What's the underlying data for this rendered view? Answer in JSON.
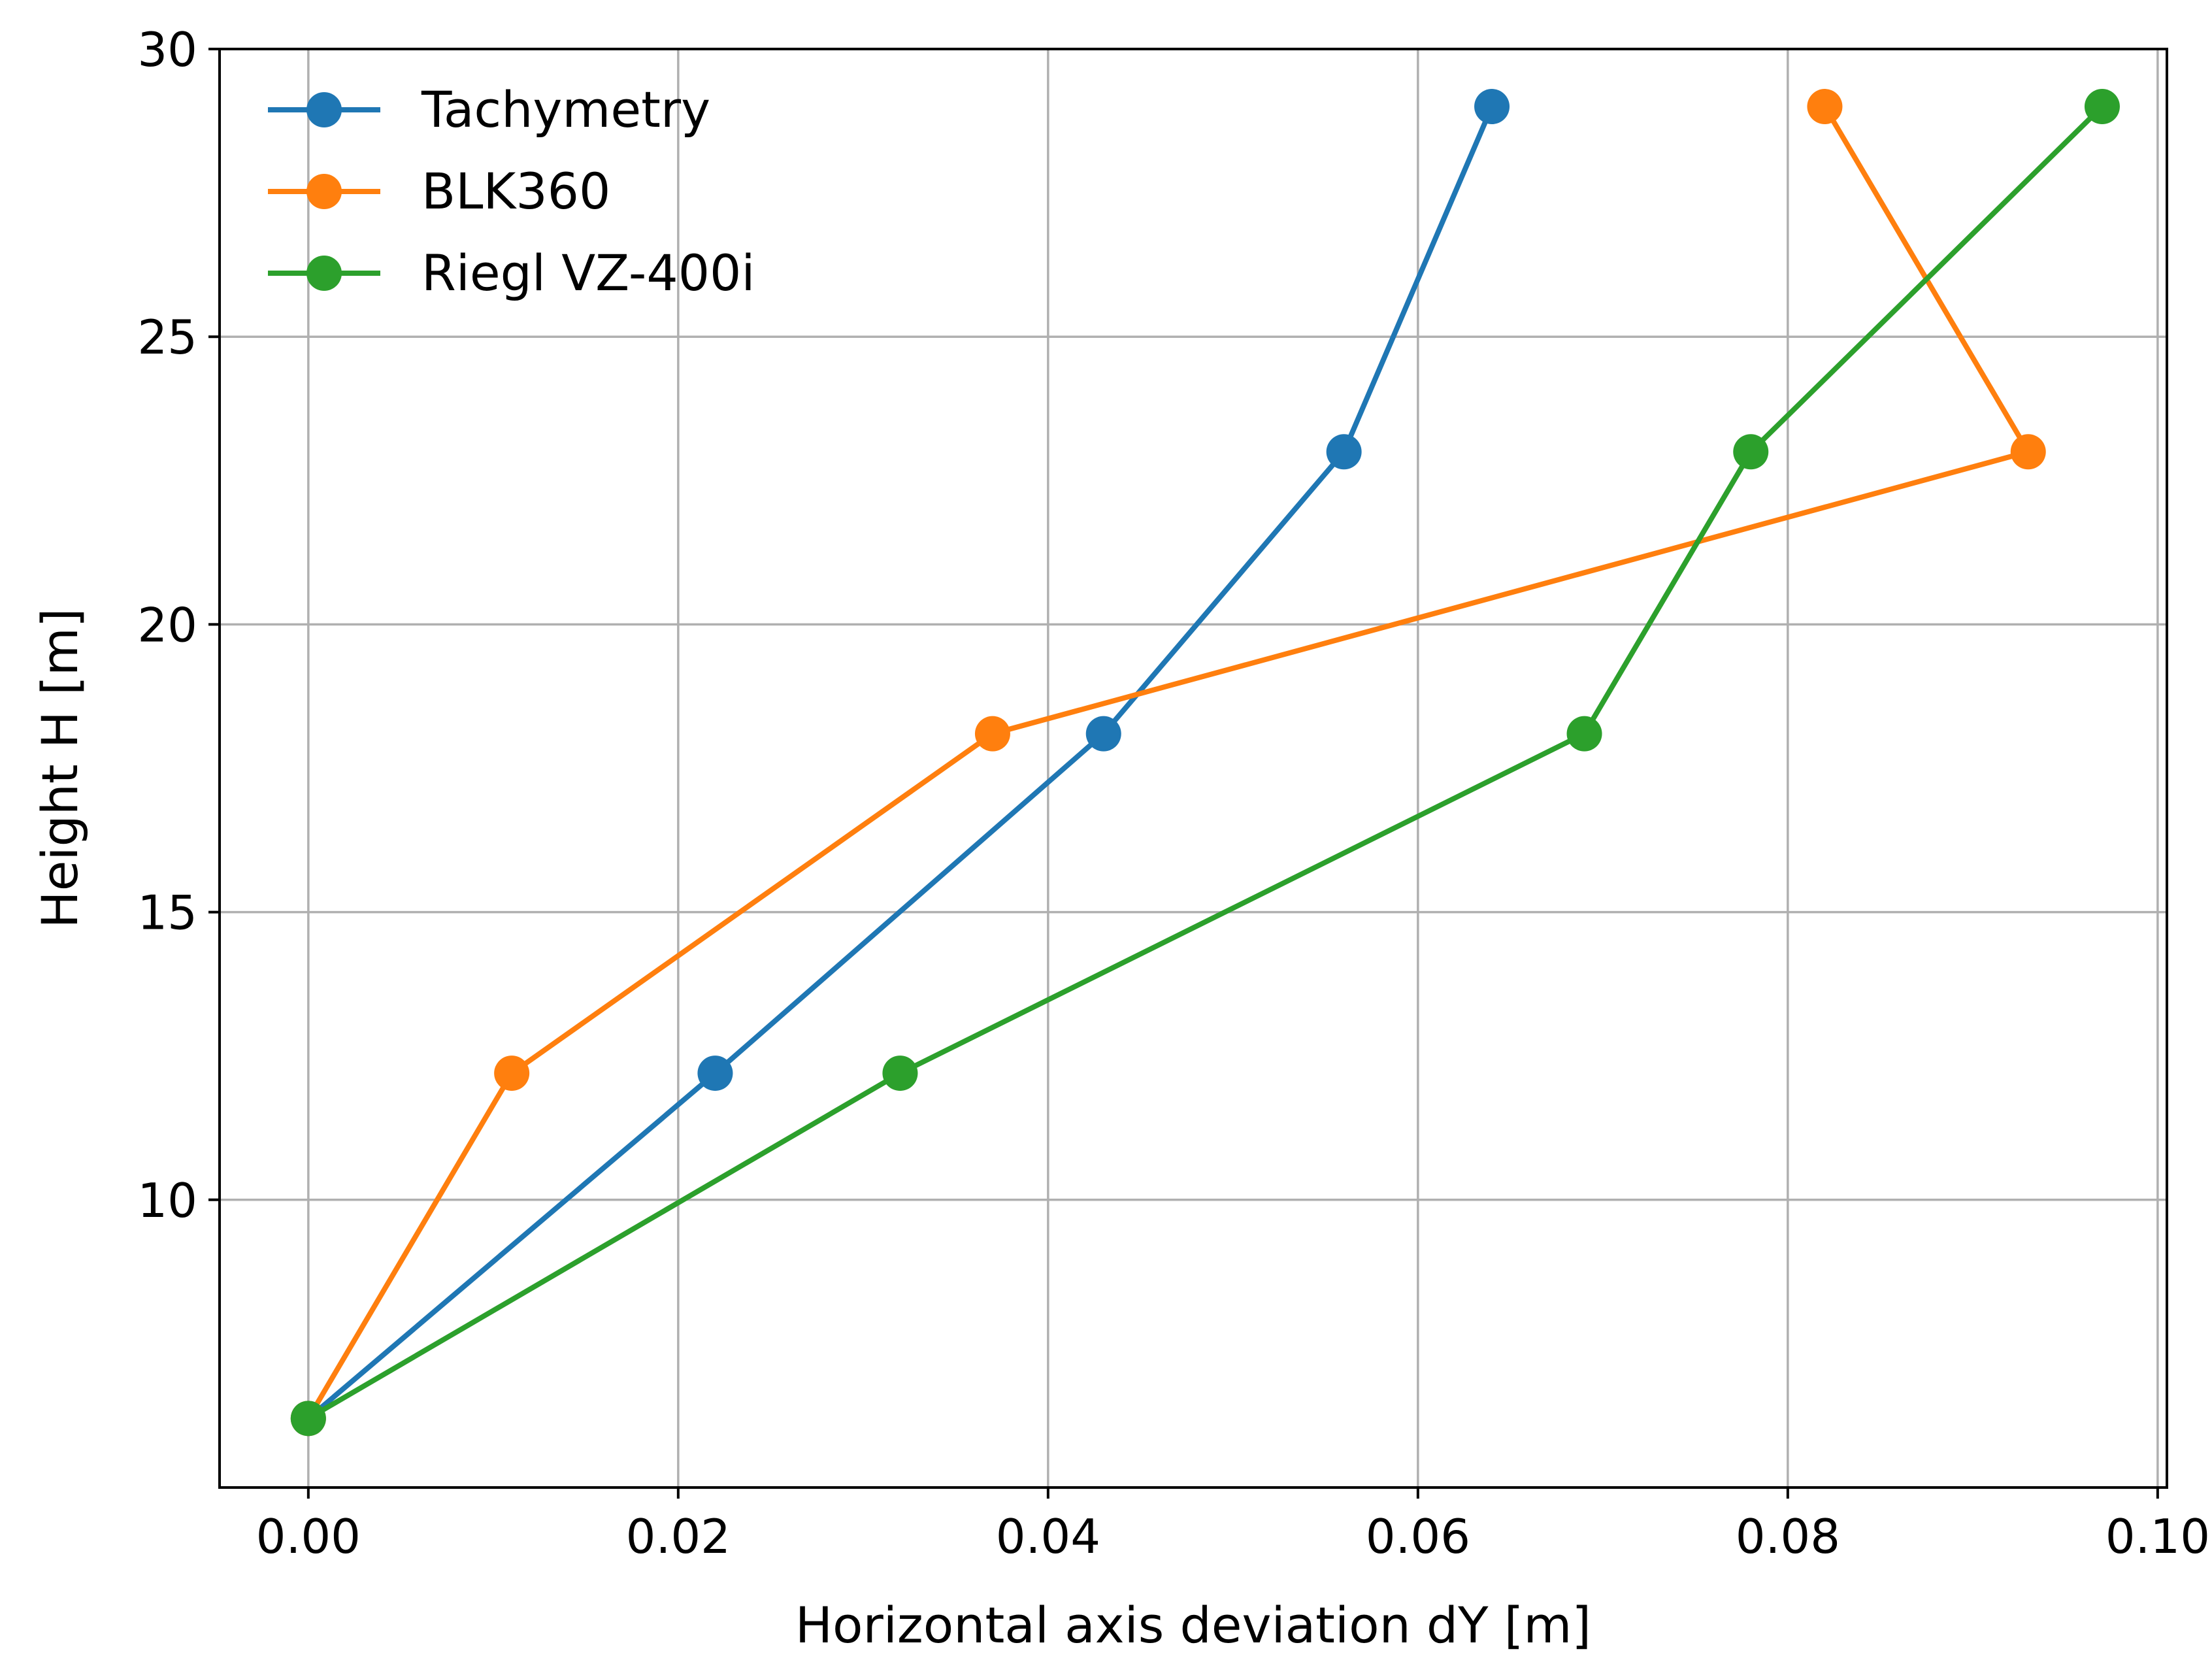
{
  "chart_data": {
    "type": "line",
    "title": "",
    "xlabel": "Horizontal axis deviation dY [m]",
    "ylabel": "Height H [m]",
    "xlim": [
      -0.0048,
      0.1005
    ],
    "ylim": [
      5.0,
      30.0
    ],
    "xticks": [
      {
        "value": 0.0,
        "label": "0.00"
      },
      {
        "value": 0.02,
        "label": "0.02"
      },
      {
        "value": 0.04,
        "label": "0.04"
      },
      {
        "value": 0.06,
        "label": "0.06"
      },
      {
        "value": 0.08,
        "label": "0.08"
      },
      {
        "value": 0.1,
        "label": "0.10"
      }
    ],
    "yticks": [
      {
        "value": 10,
        "label": "10"
      },
      {
        "value": 15,
        "label": "15"
      },
      {
        "value": 20,
        "label": "20"
      },
      {
        "value": 25,
        "label": "25"
      },
      {
        "value": 30,
        "label": "30"
      }
    ],
    "grid": true,
    "legend_position": "top-left",
    "series": [
      {
        "name": "Tachymetry",
        "color": "#1f77b4",
        "marker": "circle",
        "points": [
          {
            "x": 0.0,
            "y": 6.2
          },
          {
            "x": 0.022,
            "y": 12.2
          },
          {
            "x": 0.043,
            "y": 18.1
          },
          {
            "x": 0.056,
            "y": 23.0
          },
          {
            "x": 0.064,
            "y": 29.0
          }
        ]
      },
      {
        "name": "BLK360",
        "color": "#ff7f0e",
        "marker": "circle",
        "points": [
          {
            "x": 0.0,
            "y": 6.2
          },
          {
            "x": 0.011,
            "y": 12.2
          },
          {
            "x": 0.037,
            "y": 18.1
          },
          {
            "x": 0.093,
            "y": 23.0
          },
          {
            "x": 0.082,
            "y": 29.0
          }
        ]
      },
      {
        "name": "Riegl VZ-400i",
        "color": "#2ca02c",
        "marker": "circle",
        "points": [
          {
            "x": 0.0,
            "y": 6.2
          },
          {
            "x": 0.032,
            "y": 12.2
          },
          {
            "x": 0.069,
            "y": 18.1
          },
          {
            "x": 0.078,
            "y": 23.0
          },
          {
            "x": 0.097,
            "y": 29.0
          }
        ]
      }
    ]
  }
}
